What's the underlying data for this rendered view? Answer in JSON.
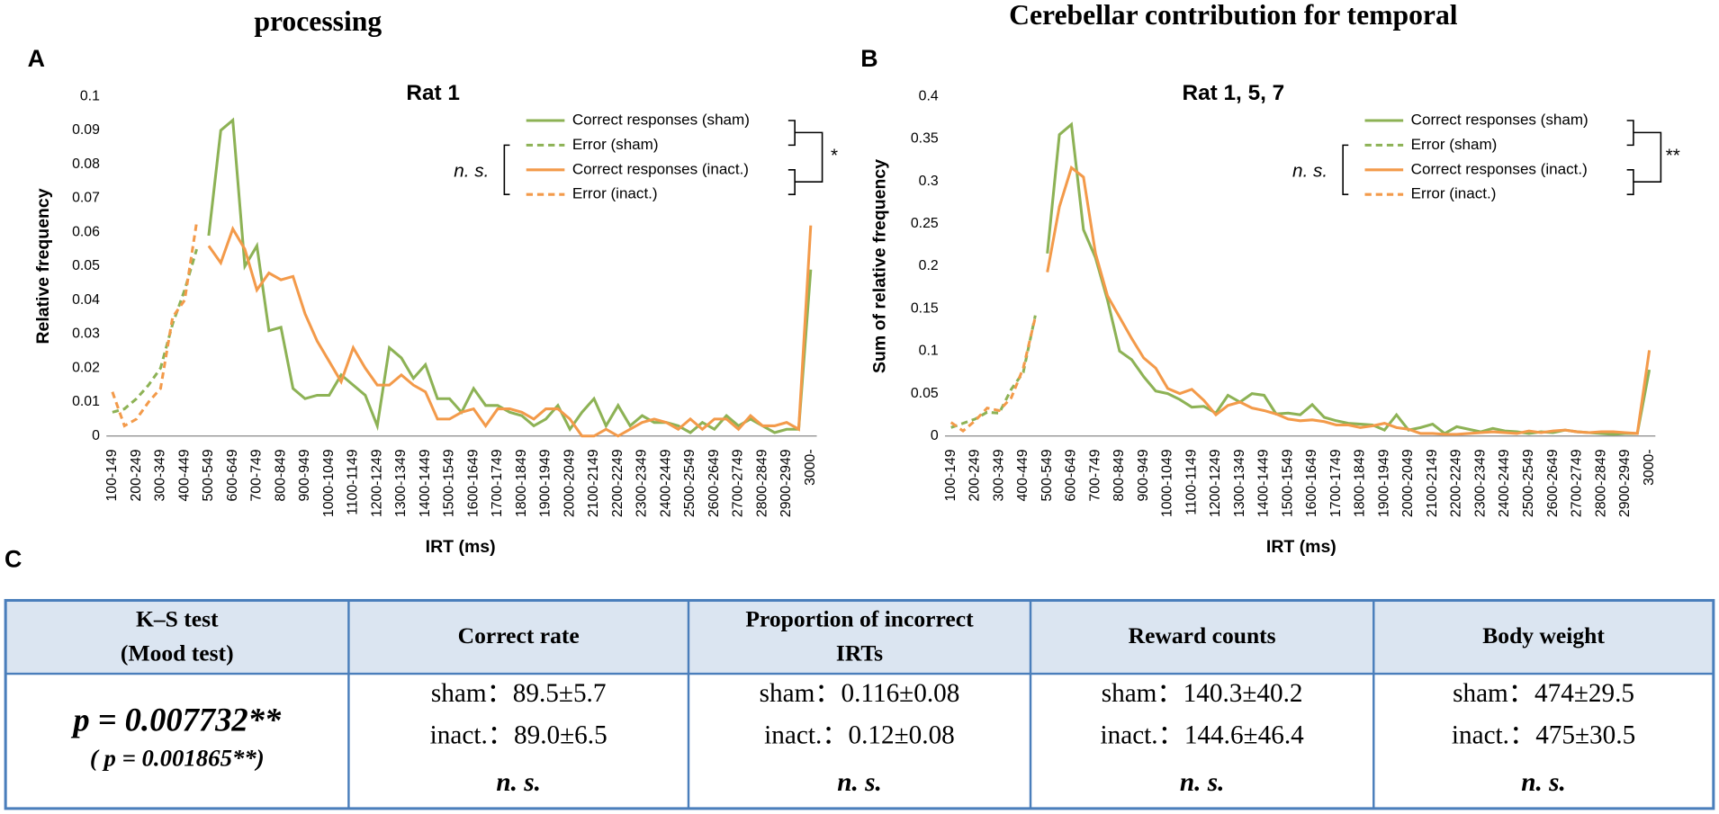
{
  "figure_titles": [
    "processing",
    "Cerebellar contribution for temporal"
  ],
  "panel_labels": [
    "A",
    "B",
    "C"
  ],
  "chart_data": [
    {
      "type": "line",
      "title": "Rat 1",
      "xlabel": "IRT (ms)",
      "ylabel": "Relative frequency",
      "categories": [
        "100-149",
        null,
        "200-249",
        null,
        "300-349",
        null,
        "400-449",
        null,
        "500-549",
        null,
        "600-649",
        null,
        "700-749",
        null,
        "800-849",
        null,
        "900-949",
        null,
        "1000-1049",
        null,
        "1100-1149",
        null,
        "1200-1249",
        null,
        "1300-1349",
        null,
        "1400-1449",
        null,
        "1500-1549",
        null,
        "1600-1649",
        null,
        "1700-1749",
        null,
        "1800-1849",
        null,
        "1900-1949",
        null,
        "2000-2049",
        null,
        "2100-2149",
        null,
        "2200-2249",
        null,
        "2300-2349",
        null,
        "2400-2449",
        null,
        "2500-2549",
        null,
        "2600-2649",
        null,
        "2700-2749",
        null,
        "2800-2849",
        null,
        "2900-2949",
        null,
        "3000-"
      ],
      "ylim": [
        0,
        0.1
      ],
      "yticks": [
        0,
        0.01,
        0.02,
        0.03,
        0.04,
        0.05,
        0.06,
        0.07,
        0.08,
        0.09,
        0.1
      ],
      "legend": "upper right",
      "annotations": [
        "n. s.",
        "*"
      ],
      "series": [
        {
          "name": "Correct responses (sham)",
          "color": "#8db255",
          "dashed": false,
          "values": [
            null,
            null,
            null,
            null,
            null,
            null,
            null,
            null,
            0.059,
            0.09,
            0.093,
            0.05,
            0.056,
            0.031,
            0.032,
            0.014,
            0.011,
            0.012,
            0.012,
            0.018,
            0.015,
            0.012,
            0.003,
            0.026,
            0.023,
            0.017,
            0.021,
            0.011,
            0.011,
            0.007,
            0.014,
            0.009,
            0.009,
            0.007,
            0.006,
            0.003,
            0.005,
            0.009,
            0.002,
            0.007,
            0.011,
            0.003,
            0.009,
            0.003,
            0.006,
            0.004,
            0.004,
            0.003,
            0.001,
            0.004,
            0.002,
            0.006,
            0.003,
            0.005,
            0.003,
            0.001,
            0.002,
            0.002,
            0.049
          ]
        },
        {
          "name": "Error (sham)",
          "color": "#8db255",
          "dashed": true,
          "values": [
            0.007,
            0.008,
            0.011,
            0.015,
            0.02,
            0.033,
            0.043,
            0.055,
            null,
            null,
            null,
            null,
            null,
            null,
            null,
            null,
            null,
            null,
            null,
            null,
            null,
            null,
            null,
            null,
            null,
            null,
            null,
            null,
            null,
            null,
            null,
            null,
            null,
            null,
            null,
            null,
            null,
            null,
            null,
            null,
            null,
            null,
            null,
            null,
            null,
            null,
            null,
            null,
            null,
            null,
            null,
            null,
            null,
            null,
            null,
            null,
            null,
            null,
            null
          ]
        },
        {
          "name": "Correct responses (inact.)",
          "color": "#f39a4a",
          "dashed": false,
          "values": [
            null,
            null,
            null,
            null,
            null,
            null,
            null,
            null,
            0.056,
            0.051,
            0.061,
            0.055,
            0.043,
            0.048,
            0.046,
            0.047,
            0.036,
            0.028,
            0.022,
            0.016,
            0.026,
            0.02,
            0.015,
            0.015,
            0.018,
            0.015,
            0.013,
            0.005,
            0.005,
            0.007,
            0.008,
            0.003,
            0.008,
            0.008,
            0.007,
            0.005,
            0.008,
            0.008,
            0.005,
            0,
            0,
            0.002,
            0,
            0.002,
            0.004,
            0.005,
            0.004,
            0.002,
            0.005,
            0.002,
            0.005,
            0.005,
            0.002,
            0.006,
            0.003,
            0.003,
            0.004,
            0.002,
            0.062
          ]
        },
        {
          "name": "Error (inact.)",
          "color": "#f39a4a",
          "dashed": true,
          "values": [
            0.013,
            0.003,
            0.005,
            0.01,
            0.014,
            0.035,
            0.04,
            0.063,
            null,
            null,
            null,
            null,
            null,
            null,
            null,
            null,
            null,
            null,
            null,
            null,
            null,
            null,
            null,
            null,
            null,
            null,
            null,
            null,
            null,
            null,
            null,
            null,
            null,
            null,
            null,
            null,
            null,
            null,
            null,
            null,
            null,
            null,
            null,
            null,
            null,
            null,
            null,
            null,
            null,
            null,
            null,
            null,
            null,
            null,
            null,
            null,
            null,
            null,
            null
          ]
        }
      ]
    },
    {
      "type": "line",
      "title": "Rat 1, 5, 7",
      "xlabel": "IRT (ms)",
      "ylabel": "Sum of relative frequency",
      "categories": [
        "100-149",
        null,
        "200-249",
        null,
        "300-349",
        null,
        "400-449",
        null,
        "500-549",
        null,
        "600-649",
        null,
        "700-749",
        null,
        "800-849",
        null,
        "900-949",
        null,
        "1000-1049",
        null,
        "1100-1149",
        null,
        "1200-1249",
        null,
        "1300-1349",
        null,
        "1400-1449",
        null,
        "1500-1549",
        null,
        "1600-1649",
        null,
        "1700-1749",
        null,
        "1800-1849",
        null,
        "1900-1949",
        null,
        "2000-2049",
        null,
        "2100-2149",
        null,
        "2200-2249",
        null,
        "2300-2349",
        null,
        "2400-2449",
        null,
        "2500-2549",
        null,
        "2600-2649",
        null,
        "2700-2749",
        null,
        "2800-2849",
        null,
        "2900-2949",
        null,
        "3000-"
      ],
      "ylim": [
        0,
        0.4
      ],
      "yticks": [
        0,
        0.05,
        0.1,
        0.15,
        0.2,
        0.25,
        0.3,
        0.35,
        0.4
      ],
      "legend": "upper right",
      "annotations": [
        "n. s.",
        "**"
      ],
      "series": [
        {
          "name": "Correct responses (sham)",
          "color": "#8db255",
          "dashed": false,
          "values": [
            null,
            null,
            null,
            null,
            null,
            null,
            null,
            null,
            0.215,
            0.355,
            0.367,
            0.243,
            0.21,
            0.16,
            0.1,
            0.09,
            0.07,
            0.053,
            0.05,
            0.043,
            0.034,
            0.035,
            0.027,
            0.048,
            0.04,
            0.05,
            0.048,
            0.026,
            0.027,
            0.025,
            0.037,
            0.022,
            0.018,
            0.015,
            0.014,
            0.013,
            0.007,
            0.025,
            0.007,
            0.01,
            0.014,
            0.003,
            0.011,
            0.008,
            0.005,
            0.009,
            0.006,
            0.005,
            0.003,
            0.005,
            0.004,
            0.007,
            0.005,
            0.004,
            0.003,
            0.002,
            0.003,
            0.003,
            0.078
          ]
        },
        {
          "name": "Error (sham)",
          "color": "#8db255",
          "dashed": true,
          "values": [
            0.01,
            0.015,
            0.02,
            0.028,
            0.027,
            0.055,
            0.075,
            0.142,
            null,
            null,
            null,
            null,
            null,
            null,
            null,
            null,
            null,
            null,
            null,
            null,
            null,
            null,
            null,
            null,
            null,
            null,
            null,
            null,
            null,
            null,
            null,
            null,
            null,
            null,
            null,
            null,
            null,
            null,
            null,
            null,
            null,
            null,
            null,
            null,
            null,
            null,
            null,
            null,
            null,
            null,
            null,
            null,
            null,
            null,
            null,
            null,
            null,
            null,
            null
          ]
        },
        {
          "name": "Correct responses (inact.)",
          "color": "#f39a4a",
          "dashed": false,
          "values": [
            null,
            null,
            null,
            null,
            null,
            null,
            null,
            null,
            0.193,
            0.27,
            0.316,
            0.305,
            0.215,
            0.165,
            0.14,
            0.115,
            0.092,
            0.08,
            0.056,
            0.05,
            0.055,
            0.042,
            0.025,
            0.036,
            0.04,
            0.033,
            0.03,
            0.026,
            0.02,
            0.018,
            0.019,
            0.017,
            0.013,
            0.013,
            0.01,
            0.012,
            0.015,
            0.01,
            0.008,
            0.003,
            0.003,
            0.002,
            0.002,
            0.003,
            0.004,
            0.005,
            0.004,
            0.003,
            0.006,
            0.004,
            0.006,
            0.007,
            0.005,
            0.004,
            0.005,
            0.005,
            0.004,
            0.003,
            0.101
          ]
        },
        {
          "name": "Error (inact.)",
          "color": "#f39a4a",
          "dashed": true,
          "values": [
            0.016,
            0.006,
            0.018,
            0.033,
            0.03,
            0.045,
            0.08,
            0.14,
            null,
            null,
            null,
            null,
            null,
            null,
            null,
            null,
            null,
            null,
            null,
            null,
            null,
            null,
            null,
            null,
            null,
            null,
            null,
            null,
            null,
            null,
            null,
            null,
            null,
            null,
            null,
            null,
            null,
            null,
            null,
            null,
            null,
            null,
            null,
            null,
            null,
            null,
            null,
            null,
            null,
            null,
            null,
            null,
            null,
            null,
            null,
            null,
            null,
            null,
            null
          ]
        }
      ]
    }
  ],
  "table": {
    "header": [
      [
        "K–S test",
        "(Mood test)"
      ],
      [
        "Correct rate"
      ],
      [
        "Proportion of incorrect",
        "IRTs"
      ],
      [
        "Reward counts"
      ],
      [
        "Body weight"
      ]
    ],
    "rows": [
      [
        [
          "p = 0.007732**",
          "( p =  0.001865**)"
        ],
        [
          "sham：89.5±5.7",
          "inact.：89.0±6.5",
          "n. s."
        ],
        [
          "sham：0.116±0.08",
          "inact.：0.12±0.08",
          "n. s."
        ],
        [
          "sham：140.3±40.2",
          "inact.：144.6±46.4",
          "n. s."
        ],
        [
          "sham：474±29.5",
          "inact.：475±30.5",
          "n. s."
        ]
      ]
    ]
  }
}
